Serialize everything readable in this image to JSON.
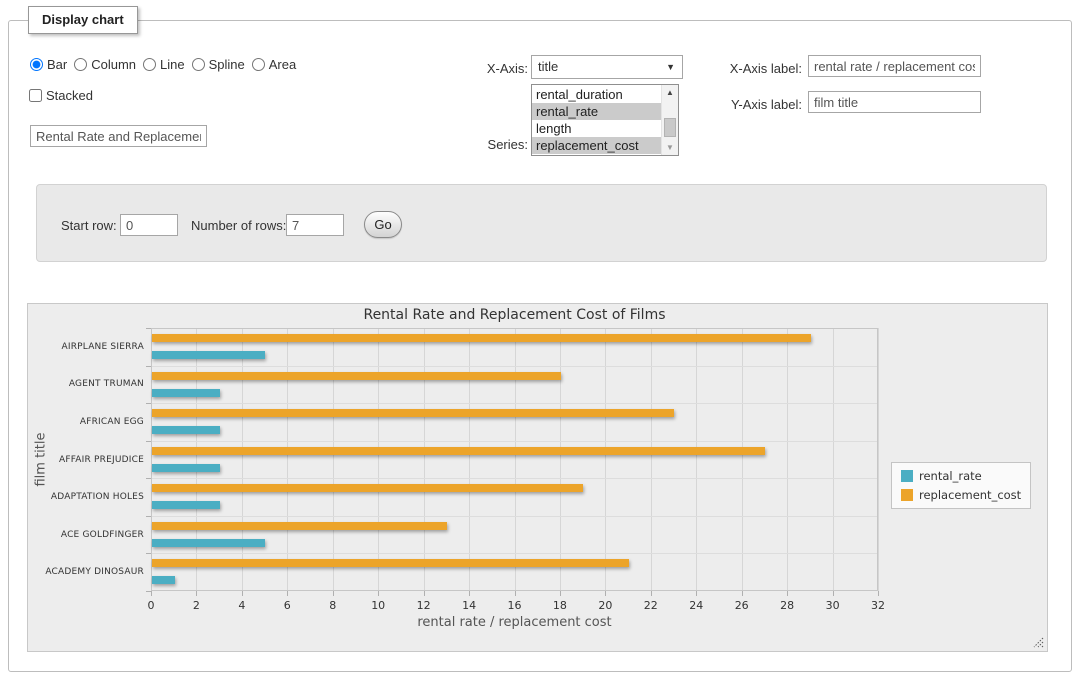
{
  "window": {
    "legend_title": "Display chart"
  },
  "controls": {
    "chart_type_options": [
      {
        "label": "Bar",
        "selected": true
      },
      {
        "label": "Column",
        "selected": false
      },
      {
        "label": "Line",
        "selected": false
      },
      {
        "label": "Spline",
        "selected": false
      },
      {
        "label": "Area",
        "selected": false
      }
    ],
    "stacked": {
      "label": "Stacked",
      "checked": false
    },
    "chart_title_input": {
      "value": "Rental Rate and Replacement Cost of Films"
    },
    "x_axis": {
      "label": "X-Axis:",
      "selected_value": "title"
    },
    "series_picker": {
      "label": "Series:",
      "options": [
        {
          "label": "rental_duration",
          "selected": false
        },
        {
          "label": "rental_rate",
          "selected": true
        },
        {
          "label": "length",
          "selected": false
        },
        {
          "label": "replacement_cost",
          "selected": true
        }
      ]
    },
    "x_axis_label_field": {
      "label": "X-Axis label:",
      "value": "rental rate / replacement cost"
    },
    "y_axis_label_field": {
      "label": "Y-Axis label:",
      "value": "film title"
    }
  },
  "pagination": {
    "start_row": {
      "label": "Start row:",
      "value": "0"
    },
    "number_of_rows": {
      "label": "Number of rows:",
      "value": "7"
    },
    "go_button": "Go"
  },
  "chart_data": {
    "type": "bar",
    "orientation": "horizontal",
    "title": "Rental Rate and Replacement Cost of Films",
    "categories": [
      "AIRPLANE SIERRA",
      "AGENT TRUMAN",
      "AFRICAN EGG",
      "AFFAIR PREJUDICE",
      "ADAPTATION HOLES",
      "ACE GOLDFINGER",
      "ACADEMY DINOSAUR"
    ],
    "series": [
      {
        "name": "rental_rate",
        "color": "#4BAEC3",
        "values": [
          4.99,
          2.99,
          2.99,
          2.99,
          2.99,
          4.99,
          0.99
        ]
      },
      {
        "name": "replacement_cost",
        "color": "#ECA42A",
        "values": [
          28.99,
          17.99,
          22.99,
          26.99,
          18.99,
          12.99,
          20.99
        ]
      }
    ],
    "xlabel": "rental rate / replacement cost",
    "ylabel": "film title",
    "xlim": [
      0,
      32
    ],
    "xticks": [
      0,
      2,
      4,
      6,
      8,
      10,
      12,
      14,
      16,
      18,
      20,
      22,
      24,
      26,
      28,
      30,
      32
    ],
    "grid": true,
    "legend_position": "right"
  }
}
